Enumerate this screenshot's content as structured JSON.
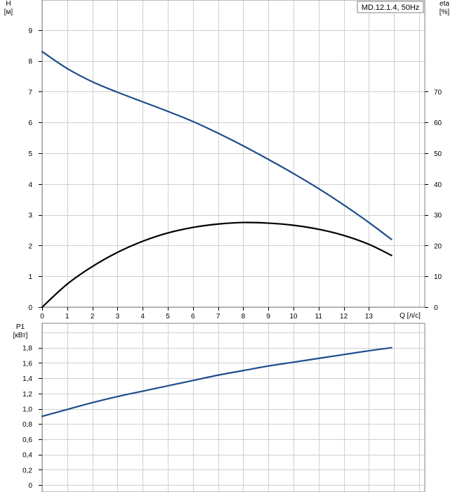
{
  "chart_data": [
    {
      "type": "line",
      "legend": "MD.12.1.4, 50Hz",
      "left_axis": {
        "label_line1": "H",
        "label_line2": "[м]",
        "ylim": [
          0,
          10
        ],
        "ticks": [
          0,
          1,
          2,
          3,
          4,
          5,
          6,
          7,
          8,
          9
        ]
      },
      "right_axis": {
        "label_line1": "eta",
        "label_line2": "[%]",
        "ylim": [
          0,
          100
        ],
        "ticks": [
          0,
          10,
          20,
          30,
          40,
          50,
          60,
          70
        ]
      },
      "x_axis": {
        "label": "Q [л/с]",
        "xlim": [
          0,
          15
        ],
        "ticks": [
          0,
          1,
          2,
          3,
          4,
          5,
          6,
          7,
          8,
          9,
          10,
          11,
          12,
          13
        ]
      },
      "grid": true,
      "series": [
        {
          "axis": "left",
          "color": "#1f4e8c",
          "x": [
            0,
            1,
            2,
            3,
            4,
            5,
            6,
            7,
            8,
            9,
            10,
            11,
            12,
            13,
            13.9
          ],
          "y": [
            8.3,
            7.75,
            7.32,
            6.98,
            6.67,
            6.36,
            6.03,
            5.65,
            5.24,
            4.8,
            4.34,
            3.85,
            3.32,
            2.75,
            2.2
          ]
        },
        {
          "axis": "right",
          "color": "#000000",
          "x": [
            0,
            1,
            2,
            3,
            4,
            5,
            6,
            7,
            8,
            9,
            10,
            11,
            12,
            13,
            13.9
          ],
          "y": [
            0,
            7.5,
            13.2,
            17.8,
            21.4,
            24.1,
            25.9,
            27.0,
            27.5,
            27.3,
            26.6,
            25.3,
            23.3,
            20.4,
            16.8
          ]
        }
      ]
    },
    {
      "type": "line",
      "left_axis": {
        "label_line1": "P1",
        "label_line2": "[кВт]",
        "ylim": [
          0,
          2.2
        ],
        "ticks": [
          "0",
          "0,2",
          "0,4",
          "0,6",
          "0,8",
          "1,0",
          "1,2",
          "1,4",
          "1,6",
          "1,8"
        ]
      },
      "x_axis": {
        "xlim": [
          0,
          15
        ]
      },
      "grid": true,
      "series": [
        {
          "axis": "left",
          "color": "#1f4e8c",
          "x": [
            0,
            1,
            2,
            3,
            4,
            5,
            6,
            7,
            8,
            9,
            10,
            11,
            12,
            13,
            13.9
          ],
          "y": [
            0.9,
            0.99,
            1.08,
            1.16,
            1.23,
            1.3,
            1.37,
            1.44,
            1.5,
            1.56,
            1.61,
            1.66,
            1.71,
            1.76,
            1.8
          ]
        }
      ]
    }
  ]
}
